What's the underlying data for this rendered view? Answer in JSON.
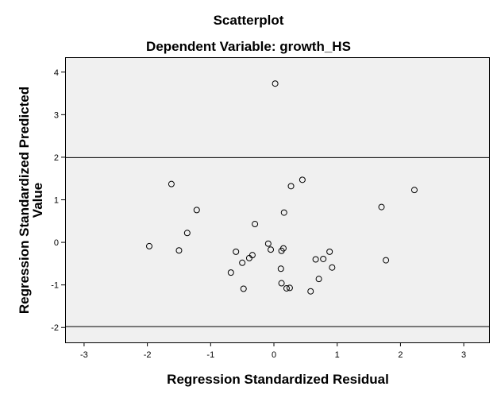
{
  "chart_data": {
    "type": "scatter",
    "title": "Scatterplot",
    "subtitle": "Dependent Variable: growth_HS",
    "xlabel": "Regression Standardized Residual",
    "ylabel": [
      "Regression Standardized Predicted",
      "Value"
    ],
    "xlim": [
      -3.3,
      3.4
    ],
    "ylim": [
      -2.35,
      4.35
    ],
    "xticks": [
      -3,
      -2,
      -1,
      0,
      1,
      2,
      3
    ],
    "yticks": [
      -2,
      -1,
      0,
      1,
      2,
      3,
      4
    ],
    "xtick_labels": [
      "-3",
      "-2",
      "-1",
      "0",
      "1",
      "2",
      "3"
    ],
    "ytick_labels": [
      "-2",
      "-1",
      "0",
      "1",
      "2",
      "3",
      "4"
    ],
    "reference_lines_y": [
      2,
      -1.97
    ],
    "grid": false,
    "plot_background": "#f0f0f0",
    "marker": "open-circle",
    "points": [
      {
        "x": 0.02,
        "y": 3.73
      },
      {
        "x": -1.62,
        "y": 1.37
      },
      {
        "x": 0.45,
        "y": 1.47
      },
      {
        "x": 0.27,
        "y": 1.32
      },
      {
        "x": 2.22,
        "y": 1.23
      },
      {
        "x": 1.7,
        "y": 0.83
      },
      {
        "x": -1.22,
        "y": 0.76
      },
      {
        "x": 0.16,
        "y": 0.7
      },
      {
        "x": -0.3,
        "y": 0.43
      },
      {
        "x": -1.37,
        "y": 0.22
      },
      {
        "x": -1.97,
        "y": -0.09
      },
      {
        "x": -1.5,
        "y": -0.19
      },
      {
        "x": -0.09,
        "y": -0.03
      },
      {
        "x": -0.05,
        "y": -0.17
      },
      {
        "x": 0.15,
        "y": -0.14
      },
      {
        "x": 0.12,
        "y": -0.2
      },
      {
        "x": -0.6,
        "y": -0.22
      },
      {
        "x": 0.88,
        "y": -0.22
      },
      {
        "x": -0.34,
        "y": -0.3
      },
      {
        "x": -0.39,
        "y": -0.37
      },
      {
        "x": 0.66,
        "y": -0.4
      },
      {
        "x": 0.78,
        "y": -0.39
      },
      {
        "x": 1.77,
        "y": -0.42
      },
      {
        "x": -0.5,
        "y": -0.48
      },
      {
        "x": 0.92,
        "y": -0.59
      },
      {
        "x": 0.11,
        "y": -0.62
      },
      {
        "x": -0.68,
        "y": -0.71
      },
      {
        "x": 0.71,
        "y": -0.86
      },
      {
        "x": 0.12,
        "y": -0.96
      },
      {
        "x": 0.2,
        "y": -1.08
      },
      {
        "x": 0.25,
        "y": -1.07
      },
      {
        "x": -0.48,
        "y": -1.09
      },
      {
        "x": 0.58,
        "y": -1.15
      }
    ]
  }
}
